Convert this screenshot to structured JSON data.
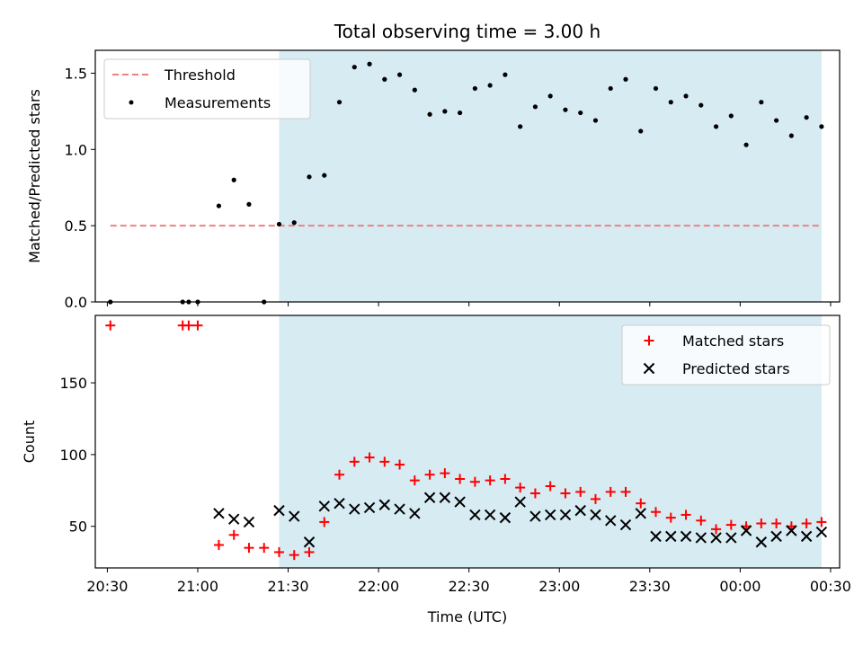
{
  "title": "Total observing time = 3.00 h",
  "colors": {
    "shade": "#add8e6",
    "threshold": "#f08080",
    "matched": "#ff0000",
    "predicted": "#000000",
    "measurement": "#000000"
  },
  "chart_data": [
    {
      "type": "scatter",
      "panel": "top",
      "xlabel": "",
      "ylabel": "Matched/Predicted stars",
      "xlim": [
        "20:26",
        "00:33"
      ],
      "ylim": [
        0,
        1.65
      ],
      "yticks": [
        "0.0",
        "0.5",
        "1.0",
        "1.5"
      ],
      "ytick_values": [
        0,
        0.5,
        1.0,
        1.5
      ],
      "shaded_span": [
        "21:27",
        "00:27"
      ],
      "legend": {
        "placement": "top-left",
        "entries": [
          "Threshold",
          "Measurements"
        ]
      },
      "threshold": {
        "name": "Threshold",
        "value": 0.5,
        "x_range": [
          "20:31",
          "00:27"
        ]
      },
      "series": [
        {
          "name": "Measurements",
          "x": [
            "20:31",
            "20:55",
            "20:57",
            "21:00",
            "21:07",
            "21:12",
            "21:17",
            "21:22",
            "21:27",
            "21:32",
            "21:37",
            "21:42",
            "21:47",
            "21:52",
            "21:57",
            "22:02",
            "22:07",
            "22:12",
            "22:17",
            "22:22",
            "22:27",
            "22:32",
            "22:37",
            "22:42",
            "22:47",
            "22:52",
            "22:57",
            "23:02",
            "23:07",
            "23:12",
            "23:17",
            "23:22",
            "23:27",
            "23:32",
            "23:37",
            "23:42",
            "23:47",
            "23:52",
            "23:57",
            "00:02",
            "00:07",
            "00:12",
            "00:17",
            "00:22",
            "00:27"
          ],
          "values": [
            0.0,
            0.0,
            0.0,
            0.0,
            0.63,
            0.8,
            0.64,
            0.0,
            0.51,
            0.52,
            0.82,
            0.83,
            1.31,
            1.54,
            1.56,
            1.46,
            1.49,
            1.39,
            1.23,
            1.25,
            1.24,
            1.4,
            1.42,
            1.49,
            1.15,
            1.28,
            1.35,
            1.26,
            1.24,
            1.19,
            1.4,
            1.46,
            1.12,
            1.4,
            1.31,
            1.35,
            1.29,
            1.15,
            1.22,
            1.03,
            1.31,
            1.19,
            1.09,
            1.21,
            1.15
          ]
        }
      ]
    },
    {
      "type": "scatter",
      "panel": "bottom",
      "xlabel": "Time (UTC)",
      "ylabel": "Count",
      "xlim": [
        "20:26",
        "00:33"
      ],
      "ylim": [
        21,
        197
      ],
      "yticks": [
        "50",
        "100",
        "150"
      ],
      "ytick_values": [
        50,
        100,
        150
      ],
      "xticks": [
        "20:30",
        "21:00",
        "21:30",
        "22:00",
        "22:30",
        "23:00",
        "23:30",
        "00:00",
        "00:30"
      ],
      "shaded_span": [
        "21:27",
        "00:27"
      ],
      "legend": {
        "placement": "top-right",
        "entries": [
          "Matched stars",
          "Predicted stars"
        ]
      },
      "series": [
        {
          "name": "Matched stars",
          "marker": "plus",
          "x": [
            "20:31",
            "20:55",
            "20:57",
            "21:00",
            "21:07",
            "21:12",
            "21:17",
            "21:22",
            "21:27",
            "21:32",
            "21:37",
            "21:42",
            "21:47",
            "21:52",
            "21:57",
            "22:02",
            "22:07",
            "22:12",
            "22:17",
            "22:22",
            "22:27",
            "22:32",
            "22:37",
            "22:42",
            "22:47",
            "22:52",
            "22:57",
            "23:02",
            "23:07",
            "23:12",
            "23:17",
            "23:22",
            "23:27",
            "23:32",
            "23:37",
            "23:42",
            "23:47",
            "23:52",
            "23:57",
            "00:02",
            "00:07",
            "00:12",
            "00:17",
            "00:22",
            "00:27"
          ],
          "values": [
            190,
            190,
            190,
            190,
            37,
            44,
            35,
            35,
            32,
            30,
            32,
            53,
            86,
            95,
            98,
            95,
            93,
            82,
            86,
            87,
            83,
            81,
            82,
            83,
            77,
            73,
            78,
            73,
            74,
            69,
            74,
            74,
            66,
            60,
            56,
            58,
            54,
            48,
            51,
            50,
            52,
            52,
            50,
            52,
            53
          ]
        },
        {
          "name": "Predicted stars",
          "marker": "x",
          "x": [
            "21:07",
            "21:12",
            "21:17",
            "21:27",
            "21:32",
            "21:37",
            "21:42",
            "21:47",
            "21:52",
            "21:57",
            "22:02",
            "22:07",
            "22:12",
            "22:17",
            "22:22",
            "22:27",
            "22:32",
            "22:37",
            "22:42",
            "22:47",
            "22:52",
            "22:57",
            "23:02",
            "23:07",
            "23:12",
            "23:17",
            "23:22",
            "23:27",
            "23:32",
            "23:37",
            "23:42",
            "23:47",
            "23:52",
            "23:57",
            "00:02",
            "00:07",
            "00:12",
            "00:17",
            "00:22",
            "00:27"
          ],
          "values": [
            59,
            55,
            53,
            61,
            57,
            39,
            64,
            66,
            62,
            63,
            65,
            62,
            59,
            70,
            70,
            67,
            58,
            58,
            56,
            67,
            57,
            58,
            58,
            61,
            58,
            54,
            51,
            59,
            43,
            43,
            43,
            42,
            42,
            42,
            47,
            39,
            43,
            47,
            43,
            46
          ]
        }
      ]
    }
  ]
}
